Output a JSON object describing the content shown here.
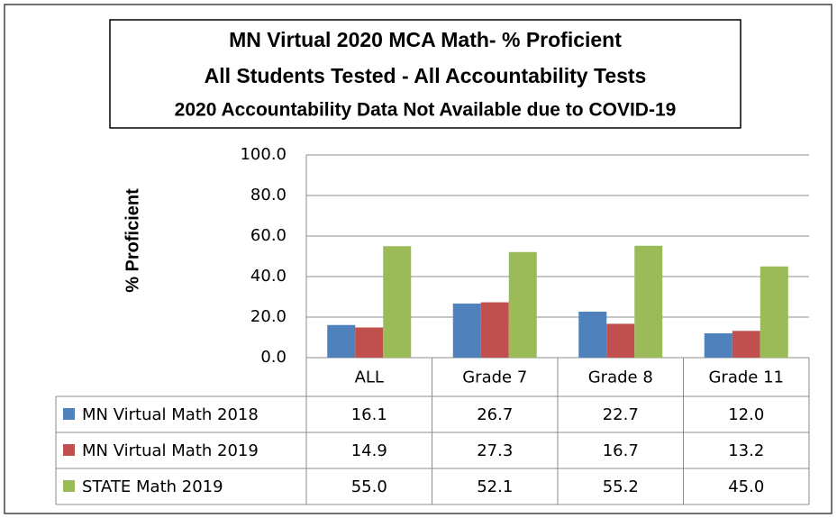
{
  "chart_data": {
    "type": "bar",
    "title": "MN Virtual 2020 MCA Math- % Proficient",
    "subtitle": [
      "All Students Tested - All Accountability Tests",
      "2020  Accountability Data Not Available due to COVID-19"
    ],
    "y_label": "% Proficient",
    "categories": [
      "ALL",
      "Grade 7",
      "Grade 8",
      "Grade 11"
    ],
    "series": [
      {
        "name": "MN Virtual Math 2018",
        "color": "#4f81bd",
        "values": [
          16.1,
          26.7,
          22.7,
          12.0
        ],
        "value_labels": [
          "16.1",
          "26.7",
          "22.7",
          "12.0"
        ]
      },
      {
        "name": "MN Virtual Math 2019",
        "color": "#c0504d",
        "values": [
          14.9,
          27.3,
          16.7,
          13.2
        ],
        "value_labels": [
          "14.9",
          "27.3",
          "16.7",
          "13.2"
        ]
      },
      {
        "name": "STATE Math 2019",
        "color": "#9bbb59",
        "values": [
          55.0,
          52.1,
          55.2,
          45.0
        ],
        "value_labels": [
          "55.0",
          "52.1",
          "55.2",
          "45.0"
        ]
      }
    ],
    "ylim": [
      0,
      100
    ],
    "yticks": [
      {
        "value": 0,
        "label": "0.0"
      },
      {
        "value": 20,
        "label": "20.0"
      },
      {
        "value": 40,
        "label": "40.0"
      },
      {
        "value": 60,
        "label": "60.0"
      },
      {
        "value": 80,
        "label": "80.0"
      },
      {
        "value": 100,
        "label": "100.0"
      }
    ],
    "grid": true
  }
}
